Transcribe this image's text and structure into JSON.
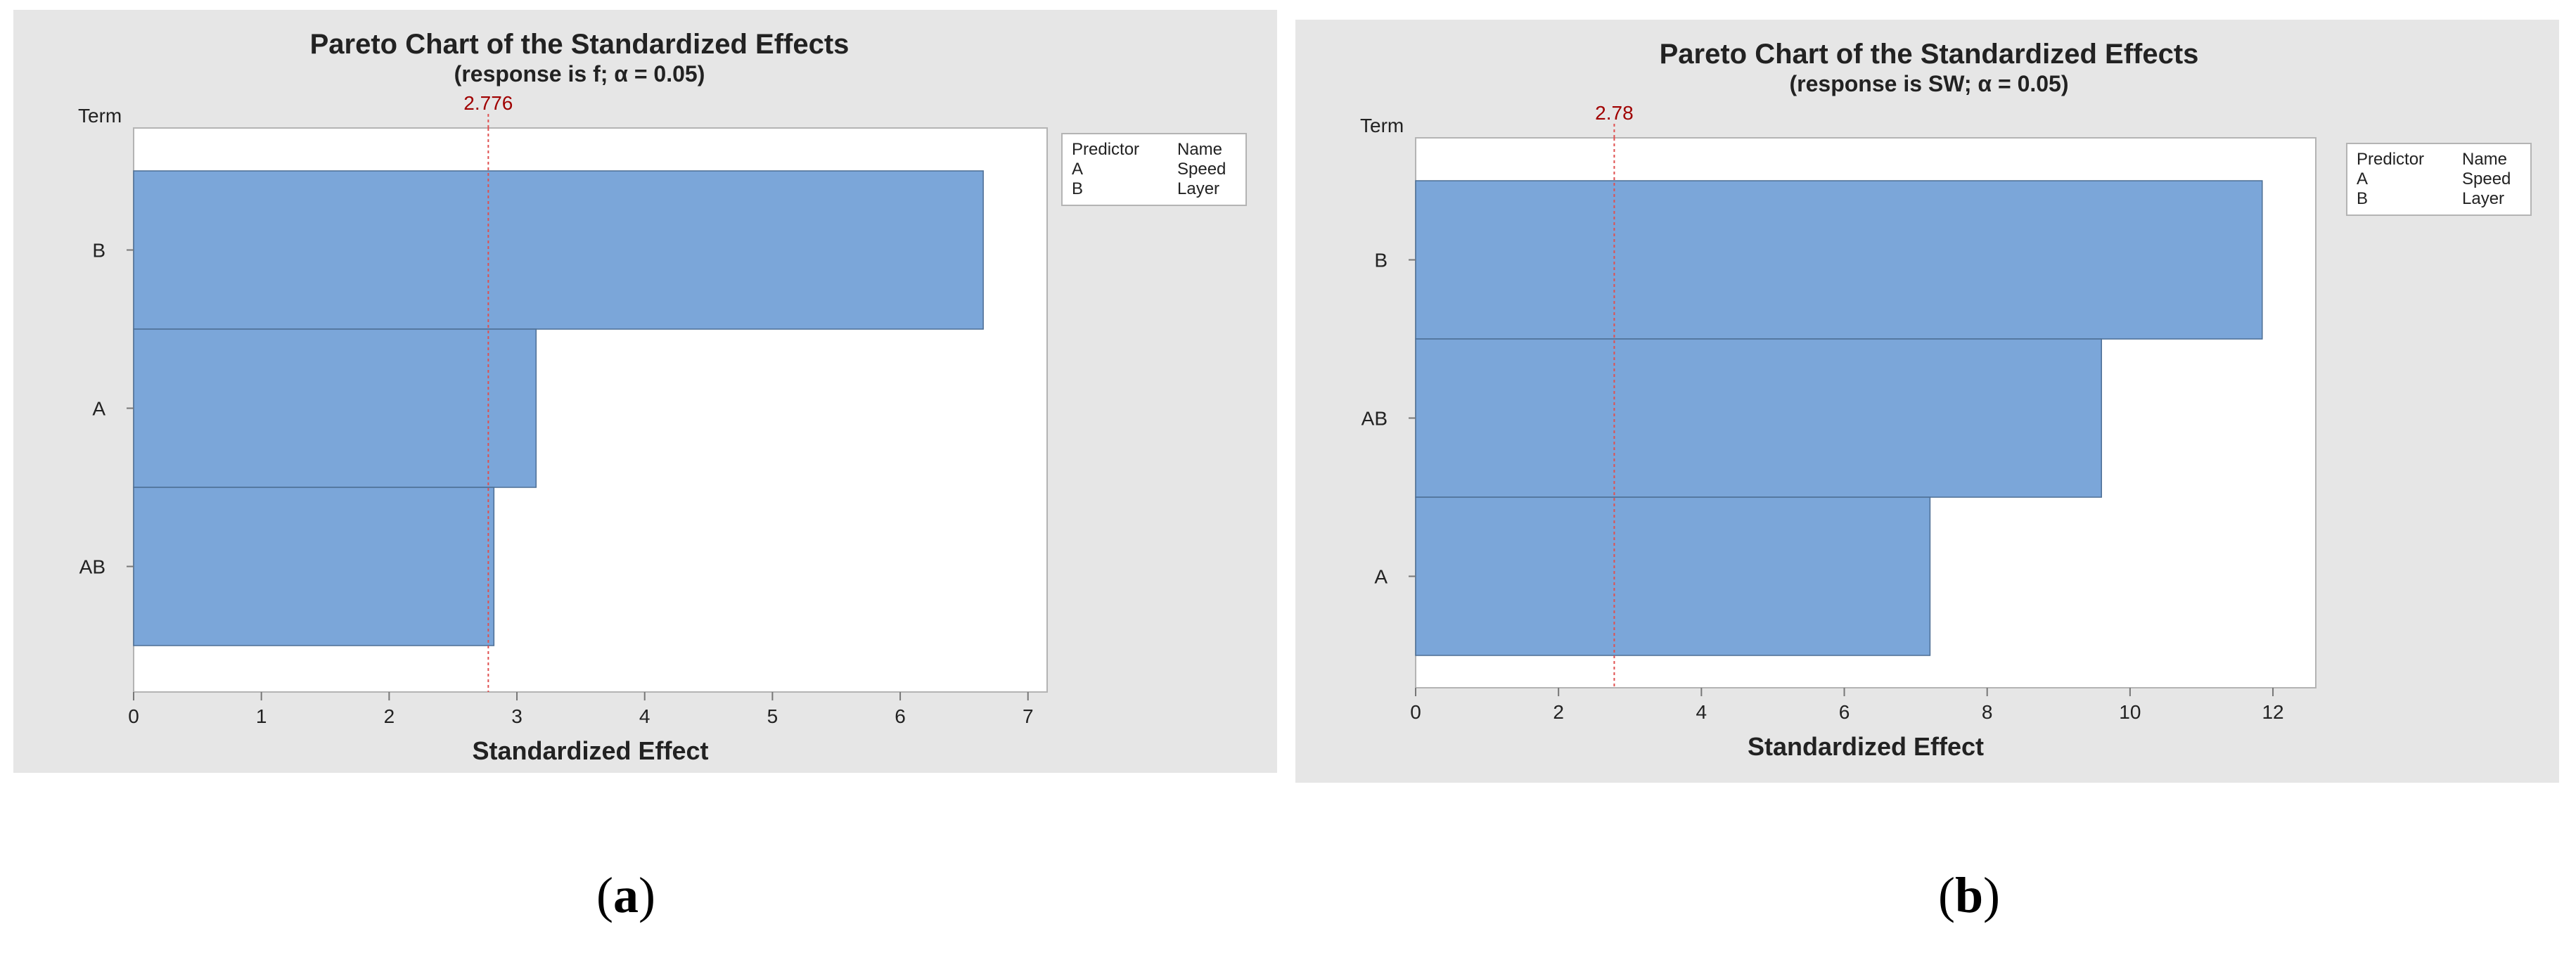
{
  "chart_data": [
    {
      "type": "bar",
      "orientation": "horizontal",
      "title": "Pareto Chart of the Standardized Effects",
      "subtitle": "(response is f; α = 0.05)",
      "ylabel": "Term",
      "xlabel": "Standardized Effect",
      "categories": [
        "B",
        "A",
        "AB"
      ],
      "values": [
        6.65,
        3.15,
        2.82
      ],
      "xlim": [
        0,
        7.15
      ],
      "xticks": [
        0,
        1,
        2,
        3,
        4,
        5,
        6,
        7
      ],
      "reference_line": {
        "value": 2.776,
        "label": "2.776",
        "color": "#cc0000"
      },
      "bar_color": "#7ba6d9",
      "legend": {
        "position": "right",
        "headers": [
          "Predictor",
          "Name"
        ],
        "rows": [
          [
            "A",
            "Speed"
          ],
          [
            "B",
            "Layer"
          ]
        ]
      },
      "grid": false
    },
    {
      "type": "bar",
      "orientation": "horizontal",
      "title": "Pareto Chart of the Standardized Effects",
      "subtitle": "(response is SW; α = 0.05)",
      "ylabel": "Term",
      "xlabel": "Standardized Effect",
      "categories": [
        "B",
        "AB",
        "A"
      ],
      "values": [
        11.85,
        9.6,
        7.2
      ],
      "xlim": [
        0,
        12.6
      ],
      "xticks": [
        0,
        2,
        4,
        6,
        8,
        10,
        12
      ],
      "reference_line": {
        "value": 2.78,
        "label": "2.78",
        "color": "#cc0000"
      },
      "bar_color": "#7ba6d9",
      "legend": {
        "position": "right",
        "headers": [
          "Predictor",
          "Name"
        ],
        "rows": [
          [
            "A",
            "Speed"
          ],
          [
            "B",
            "Layer"
          ]
        ]
      },
      "grid": false
    }
  ],
  "captions": [
    {
      "open": "(",
      "letter": "a",
      "close": ")"
    },
    {
      "open": "(",
      "letter": "b",
      "close": ")"
    }
  ]
}
